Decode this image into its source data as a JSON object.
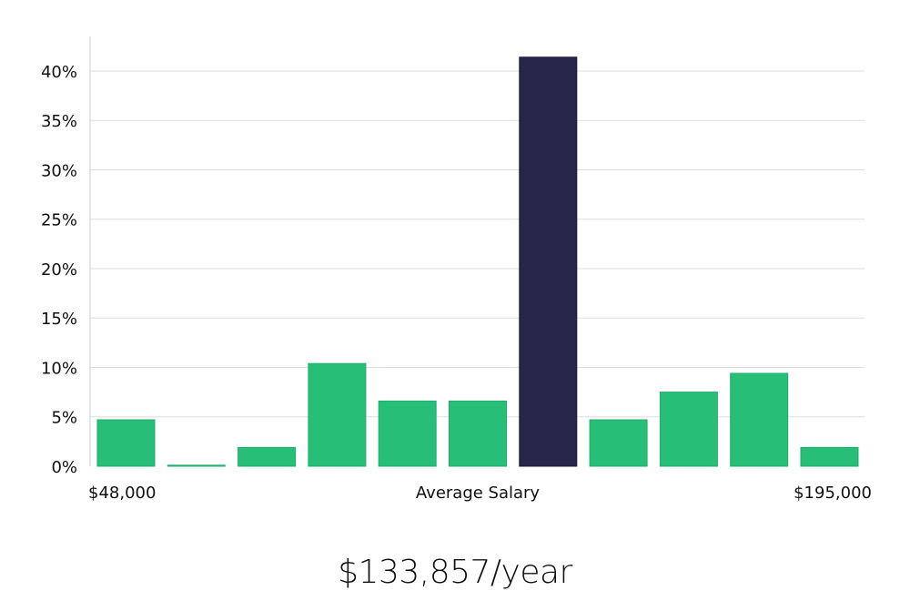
{
  "chart_data": {
    "type": "bar",
    "title": "",
    "xlabel": "Average Salary",
    "ylabel": "",
    "x_min_label": "$48,000",
    "x_max_label": "$195,000",
    "ylim": [
      0,
      43.5
    ],
    "yticks": [
      0,
      5,
      10,
      15,
      20,
      25,
      30,
      35,
      40
    ],
    "ytick_labels": [
      "0%",
      "5%",
      "10%",
      "15%",
      "20%",
      "25%",
      "30%",
      "35%",
      "40%"
    ],
    "values": [
      4.7,
      0.1,
      1.9,
      10.4,
      6.6,
      6.6,
      41.4,
      4.7,
      7.5,
      9.4,
      1.9
    ],
    "highlight_index": 6,
    "colors": {
      "bar": "#27be78",
      "highlight": "#28254a",
      "grid": "#dddddd",
      "axis": "#cccccc"
    }
  },
  "summary": {
    "salary": "$133,857/year"
  }
}
